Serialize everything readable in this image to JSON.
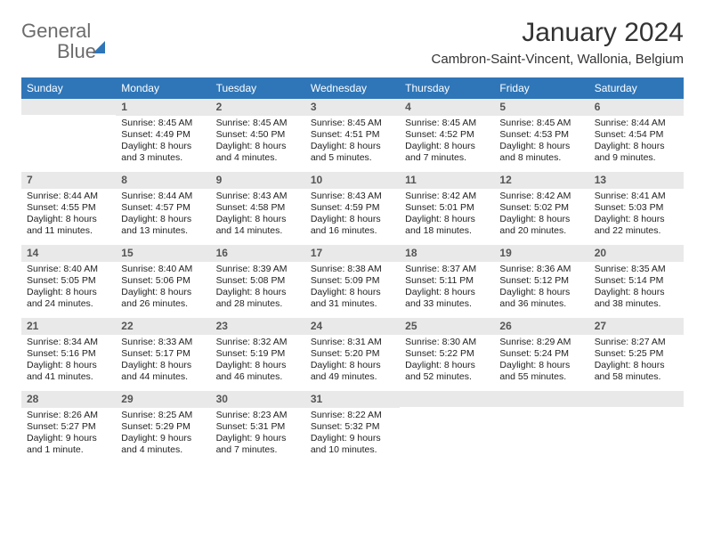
{
  "logo": {
    "word1": "General",
    "word2": "Blue"
  },
  "title": "January 2024",
  "location": "Cambron-Saint-Vincent, Wallonia, Belgium",
  "day_names": [
    "Sunday",
    "Monday",
    "Tuesday",
    "Wednesday",
    "Thursday",
    "Friday",
    "Saturday"
  ],
  "colors": {
    "header_bg": "#2f76b8",
    "header_fg": "#ffffff",
    "daynum_bg": "#e9e9e9",
    "text": "#222222",
    "logo_gray": "#6c6c6c"
  },
  "weeks": [
    [
      {
        "n": "",
        "sr": "",
        "ss": "",
        "d1": "",
        "d2": ""
      },
      {
        "n": "1",
        "sr": "Sunrise: 8:45 AM",
        "ss": "Sunset: 4:49 PM",
        "d1": "Daylight: 8 hours",
        "d2": "and 3 minutes."
      },
      {
        "n": "2",
        "sr": "Sunrise: 8:45 AM",
        "ss": "Sunset: 4:50 PM",
        "d1": "Daylight: 8 hours",
        "d2": "and 4 minutes."
      },
      {
        "n": "3",
        "sr": "Sunrise: 8:45 AM",
        "ss": "Sunset: 4:51 PM",
        "d1": "Daylight: 8 hours",
        "d2": "and 5 minutes."
      },
      {
        "n": "4",
        "sr": "Sunrise: 8:45 AM",
        "ss": "Sunset: 4:52 PM",
        "d1": "Daylight: 8 hours",
        "d2": "and 7 minutes."
      },
      {
        "n": "5",
        "sr": "Sunrise: 8:45 AM",
        "ss": "Sunset: 4:53 PM",
        "d1": "Daylight: 8 hours",
        "d2": "and 8 minutes."
      },
      {
        "n": "6",
        "sr": "Sunrise: 8:44 AM",
        "ss": "Sunset: 4:54 PM",
        "d1": "Daylight: 8 hours",
        "d2": "and 9 minutes."
      }
    ],
    [
      {
        "n": "7",
        "sr": "Sunrise: 8:44 AM",
        "ss": "Sunset: 4:55 PM",
        "d1": "Daylight: 8 hours",
        "d2": "and 11 minutes."
      },
      {
        "n": "8",
        "sr": "Sunrise: 8:44 AM",
        "ss": "Sunset: 4:57 PM",
        "d1": "Daylight: 8 hours",
        "d2": "and 13 minutes."
      },
      {
        "n": "9",
        "sr": "Sunrise: 8:43 AM",
        "ss": "Sunset: 4:58 PM",
        "d1": "Daylight: 8 hours",
        "d2": "and 14 minutes."
      },
      {
        "n": "10",
        "sr": "Sunrise: 8:43 AM",
        "ss": "Sunset: 4:59 PM",
        "d1": "Daylight: 8 hours",
        "d2": "and 16 minutes."
      },
      {
        "n": "11",
        "sr": "Sunrise: 8:42 AM",
        "ss": "Sunset: 5:01 PM",
        "d1": "Daylight: 8 hours",
        "d2": "and 18 minutes."
      },
      {
        "n": "12",
        "sr": "Sunrise: 8:42 AM",
        "ss": "Sunset: 5:02 PM",
        "d1": "Daylight: 8 hours",
        "d2": "and 20 minutes."
      },
      {
        "n": "13",
        "sr": "Sunrise: 8:41 AM",
        "ss": "Sunset: 5:03 PM",
        "d1": "Daylight: 8 hours",
        "d2": "and 22 minutes."
      }
    ],
    [
      {
        "n": "14",
        "sr": "Sunrise: 8:40 AM",
        "ss": "Sunset: 5:05 PM",
        "d1": "Daylight: 8 hours",
        "d2": "and 24 minutes."
      },
      {
        "n": "15",
        "sr": "Sunrise: 8:40 AM",
        "ss": "Sunset: 5:06 PM",
        "d1": "Daylight: 8 hours",
        "d2": "and 26 minutes."
      },
      {
        "n": "16",
        "sr": "Sunrise: 8:39 AM",
        "ss": "Sunset: 5:08 PM",
        "d1": "Daylight: 8 hours",
        "d2": "and 28 minutes."
      },
      {
        "n": "17",
        "sr": "Sunrise: 8:38 AM",
        "ss": "Sunset: 5:09 PM",
        "d1": "Daylight: 8 hours",
        "d2": "and 31 minutes."
      },
      {
        "n": "18",
        "sr": "Sunrise: 8:37 AM",
        "ss": "Sunset: 5:11 PM",
        "d1": "Daylight: 8 hours",
        "d2": "and 33 minutes."
      },
      {
        "n": "19",
        "sr": "Sunrise: 8:36 AM",
        "ss": "Sunset: 5:12 PM",
        "d1": "Daylight: 8 hours",
        "d2": "and 36 minutes."
      },
      {
        "n": "20",
        "sr": "Sunrise: 8:35 AM",
        "ss": "Sunset: 5:14 PM",
        "d1": "Daylight: 8 hours",
        "d2": "and 38 minutes."
      }
    ],
    [
      {
        "n": "21",
        "sr": "Sunrise: 8:34 AM",
        "ss": "Sunset: 5:16 PM",
        "d1": "Daylight: 8 hours",
        "d2": "and 41 minutes."
      },
      {
        "n": "22",
        "sr": "Sunrise: 8:33 AM",
        "ss": "Sunset: 5:17 PM",
        "d1": "Daylight: 8 hours",
        "d2": "and 44 minutes."
      },
      {
        "n": "23",
        "sr": "Sunrise: 8:32 AM",
        "ss": "Sunset: 5:19 PM",
        "d1": "Daylight: 8 hours",
        "d2": "and 46 minutes."
      },
      {
        "n": "24",
        "sr": "Sunrise: 8:31 AM",
        "ss": "Sunset: 5:20 PM",
        "d1": "Daylight: 8 hours",
        "d2": "and 49 minutes."
      },
      {
        "n": "25",
        "sr": "Sunrise: 8:30 AM",
        "ss": "Sunset: 5:22 PM",
        "d1": "Daylight: 8 hours",
        "d2": "and 52 minutes."
      },
      {
        "n": "26",
        "sr": "Sunrise: 8:29 AM",
        "ss": "Sunset: 5:24 PM",
        "d1": "Daylight: 8 hours",
        "d2": "and 55 minutes."
      },
      {
        "n": "27",
        "sr": "Sunrise: 8:27 AM",
        "ss": "Sunset: 5:25 PM",
        "d1": "Daylight: 8 hours",
        "d2": "and 58 minutes."
      }
    ],
    [
      {
        "n": "28",
        "sr": "Sunrise: 8:26 AM",
        "ss": "Sunset: 5:27 PM",
        "d1": "Daylight: 9 hours",
        "d2": "and 1 minute."
      },
      {
        "n": "29",
        "sr": "Sunrise: 8:25 AM",
        "ss": "Sunset: 5:29 PM",
        "d1": "Daylight: 9 hours",
        "d2": "and 4 minutes."
      },
      {
        "n": "30",
        "sr": "Sunrise: 8:23 AM",
        "ss": "Sunset: 5:31 PM",
        "d1": "Daylight: 9 hours",
        "d2": "and 7 minutes."
      },
      {
        "n": "31",
        "sr": "Sunrise: 8:22 AM",
        "ss": "Sunset: 5:32 PM",
        "d1": "Daylight: 9 hours",
        "d2": "and 10 minutes."
      },
      {
        "n": "",
        "sr": "",
        "ss": "",
        "d1": "",
        "d2": ""
      },
      {
        "n": "",
        "sr": "",
        "ss": "",
        "d1": "",
        "d2": ""
      },
      {
        "n": "",
        "sr": "",
        "ss": "",
        "d1": "",
        "d2": ""
      }
    ]
  ]
}
